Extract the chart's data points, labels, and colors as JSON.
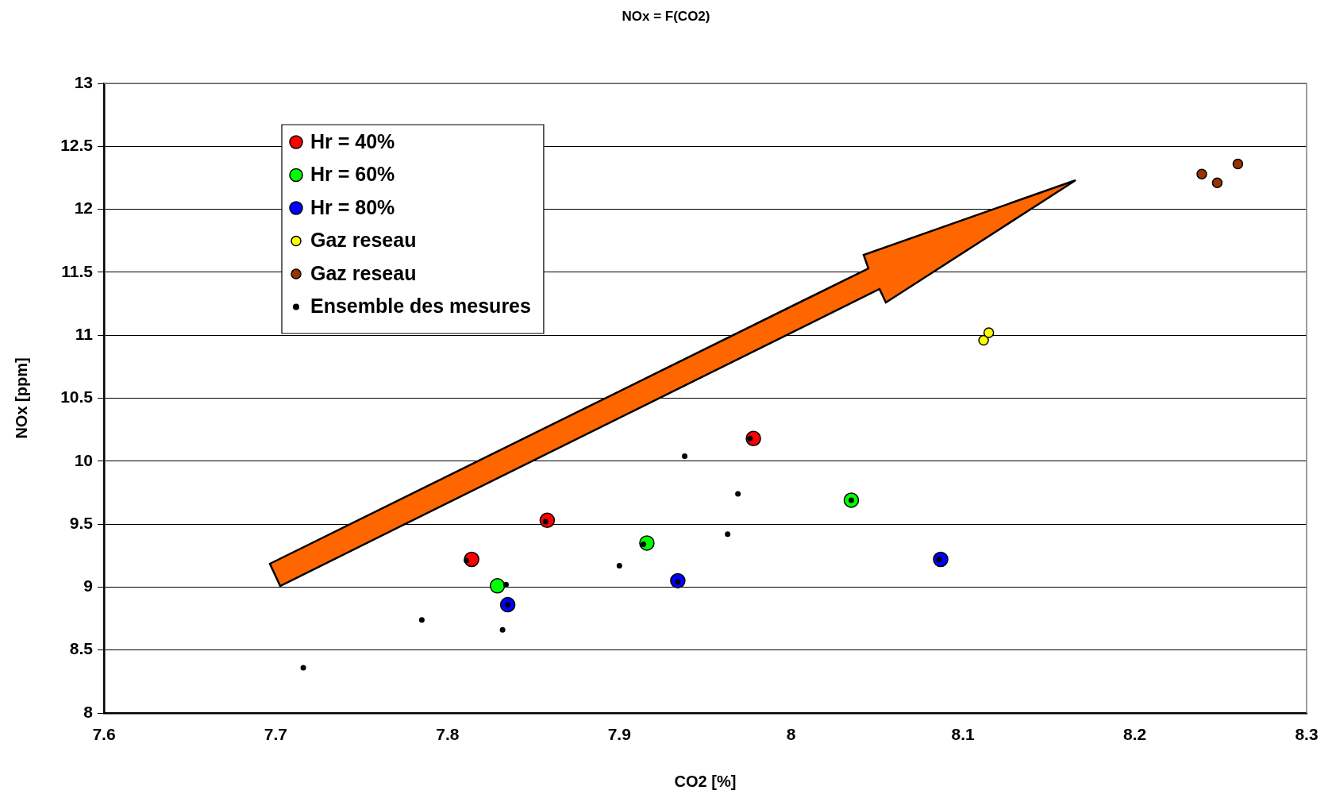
{
  "chart_data": {
    "type": "scatter",
    "title": "NOx = F(CO2)",
    "xlabel": "CO2 [%]",
    "ylabel": "NOx [ppm]",
    "xlim": [
      7.6,
      8.3
    ],
    "xticks": [
      7.6,
      7.7,
      7.8,
      7.9,
      8,
      8.1,
      8.2,
      8.3
    ],
    "ylim": [
      8,
      13
    ],
    "yticks": [
      8,
      8.5,
      9,
      9.5,
      10,
      10.5,
      11,
      11.5,
      12,
      12.5,
      13
    ],
    "grid": "y",
    "legend": "top left",
    "marker": "circle",
    "series": [
      {
        "name": "Hr = 40%",
        "color": "#ff0000",
        "x": [
          7.814,
          7.858,
          7.978
        ],
        "values": [
          9.22,
          9.53,
          10.18
        ]
      },
      {
        "name": "Hr = 60%",
        "color": "#00ff00",
        "x": [
          7.829,
          7.916,
          8.035
        ],
        "values": [
          9.01,
          9.35,
          9.69
        ]
      },
      {
        "name": "Hr = 80%",
        "color": "#0000ff",
        "x": [
          7.835,
          7.934,
          8.087
        ],
        "values": [
          8.86,
          9.05,
          9.22
        ]
      },
      {
        "name": "Gaz reseau",
        "color": "#ffff00",
        "x": [
          8.112,
          8.115
        ],
        "values": [
          10.96,
          11.02
        ]
      },
      {
        "name": "Gaz reseau",
        "color": "#993300",
        "x": [
          8.239,
          8.248,
          8.26
        ],
        "values": [
          12.28,
          12.21,
          12.36
        ]
      },
      {
        "name": "Ensemble des mesures",
        "color": "#000000",
        "x": [
          7.716,
          7.785,
          7.811,
          7.832,
          7.834,
          7.835,
          7.857,
          7.9,
          7.914,
          7.934,
          7.938,
          7.963,
          7.969,
          7.976,
          8.035,
          8.086
        ],
        "values": [
          8.36,
          8.74,
          9.21,
          8.66,
          9.02,
          8.86,
          9.52,
          9.17,
          9.34,
          9.04,
          10.04,
          9.42,
          9.74,
          10.18,
          9.69,
          9.22
        ]
      }
    ]
  }
}
